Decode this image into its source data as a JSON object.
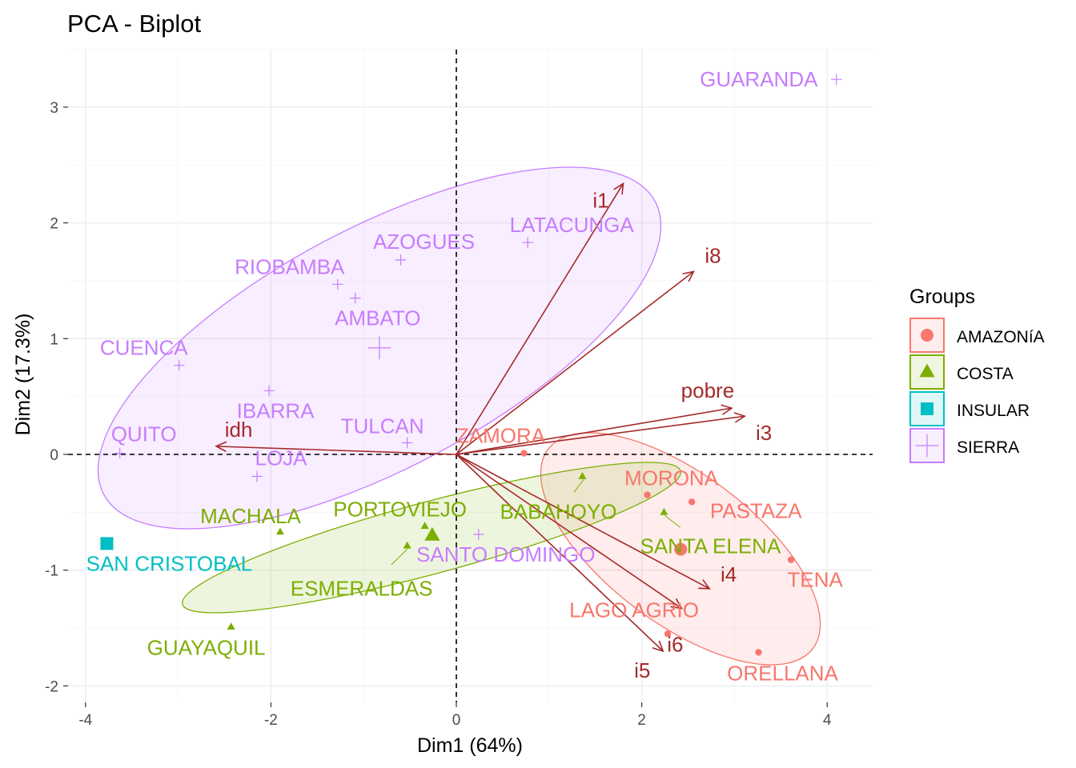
{
  "chart_data": {
    "type": "scatter",
    "title": "PCA - Biplot",
    "xlabel": "Dim1 (64%)",
    "ylabel": "Dim2 (17.3%)",
    "xlim": [
      -4.2,
      4.5
    ],
    "ylim": [
      -2.1,
      3.5
    ],
    "xticks": [
      -4,
      -2,
      0,
      2,
      4
    ],
    "yticks": [
      -2,
      -1,
      0,
      1,
      2,
      3
    ],
    "grid": true,
    "reference_lines": [
      {
        "axis": "x",
        "value": 0,
        "style": "dashed"
      },
      {
        "axis": "y",
        "value": 0,
        "style": "dashed"
      }
    ],
    "legend": {
      "title": "Groups",
      "placement": "right",
      "entries": [
        {
          "name": "AMAZONíA",
          "color": "#F8766D",
          "shape": "circle"
        },
        {
          "name": "COSTA",
          "color": "#7CAE00",
          "shape": "triangle"
        },
        {
          "name": "INSULAR",
          "color": "#00BFC4",
          "shape": "square"
        },
        {
          "name": "SIERRA",
          "color": "#C77CFF",
          "shape": "plus"
        }
      ]
    },
    "series": [
      {
        "name": "AMAZONíA",
        "color": "#F8766D",
        "shape": "circle",
        "ellipse": true,
        "centroid": [
          2.42,
          -0.82
        ],
        "points": [
          {
            "label": "ZAMORA",
            "x": 0.73,
            "y": 0.01
          },
          {
            "label": "MORONA",
            "x": 2.06,
            "y": -0.35
          },
          {
            "label": "PASTAZA",
            "x": 2.54,
            "y": -0.41
          },
          {
            "label": "TENA",
            "x": 3.61,
            "y": -0.91
          },
          {
            "label": "LAGO AGRIO",
            "x": 2.28,
            "y": -1.55
          },
          {
            "label": "ORELLANA",
            "x": 3.26,
            "y": -1.71
          }
        ]
      },
      {
        "name": "COSTA",
        "color": "#7CAE00",
        "shape": "triangle",
        "ellipse": true,
        "centroid": [
          -0.26,
          -0.7
        ],
        "points": [
          {
            "label": "GUAYAQUIL",
            "x": -2.43,
            "y": -1.49
          },
          {
            "label": "MACHALA",
            "x": -1.9,
            "y": -0.67
          },
          {
            "label": "ESMERALDAS",
            "x": -0.53,
            "y": -0.79
          },
          {
            "label": "PORTOVIEJO",
            "x": -0.34,
            "y": -0.62
          },
          {
            "label": "BABAHOYO",
            "x": 1.36,
            "y": -0.19
          },
          {
            "label": "SANTA ELENA",
            "x": 2.24,
            "y": -0.5
          }
        ]
      },
      {
        "name": "INSULAR",
        "color": "#00BFC4",
        "shape": "square",
        "ellipse": false,
        "centroid": [
          -3.77,
          -0.77
        ],
        "points": [
          {
            "label": "SAN CRISTOBAL",
            "x": -3.77,
            "y": -0.77
          }
        ]
      },
      {
        "name": "SIERRA",
        "color": "#C77CFF",
        "shape": "plus",
        "ellipse": true,
        "centroid": [
          -0.83,
          0.92
        ],
        "points": [
          {
            "label": "GUARANDA",
            "x": 4.1,
            "y": 3.24
          },
          {
            "label": "LATACUNGA",
            "x": 0.77,
            "y": 1.83
          },
          {
            "label": "AZOGUES",
            "x": -0.6,
            "y": 1.68
          },
          {
            "label": "RIOBAMBA",
            "x": -1.28,
            "y": 1.47
          },
          {
            "label": "AMBATO",
            "x": -1.09,
            "y": 1.35
          },
          {
            "label": "CUENCA",
            "x": -2.99,
            "y": 0.77
          },
          {
            "label": "IBARRA",
            "x": -2.02,
            "y": 0.55
          },
          {
            "label": "TULCAN",
            "x": -0.53,
            "y": 0.1
          },
          {
            "label": "QUITO",
            "x": -3.63,
            "y": 0.01
          },
          {
            "label": "LOJA",
            "x": -2.15,
            "y": -0.19
          },
          {
            "label": "SANTO DOMINGO",
            "x": 0.24,
            "y": -0.69
          }
        ]
      }
    ],
    "variables": {
      "color": "#A52A2A",
      "arrows": [
        {
          "label": "i1",
          "x": 1.8,
          "y": 2.34
        },
        {
          "label": "i8",
          "x": 2.56,
          "y": 1.58
        },
        {
          "label": "pobre",
          "x": 2.97,
          "y": 0.4
        },
        {
          "label": "i3",
          "x": 3.11,
          "y": 0.33
        },
        {
          "label": "idh",
          "x": -2.59,
          "y": 0.07
        },
        {
          "label": "i4",
          "x": 2.73,
          "y": -1.16
        },
        {
          "label": "i6",
          "x": 2.43,
          "y": -1.33
        },
        {
          "label": "i5",
          "x": 2.23,
          "y": -1.7
        }
      ]
    }
  }
}
